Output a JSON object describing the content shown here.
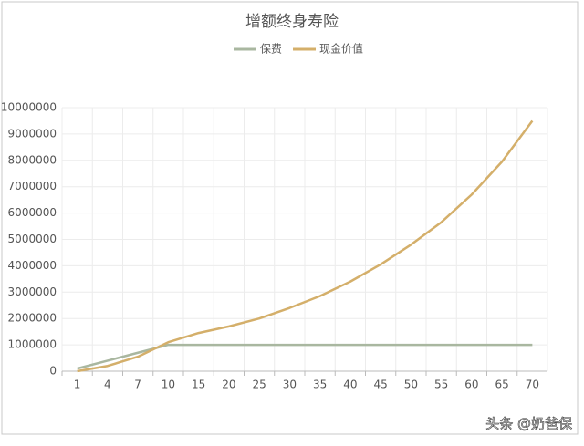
{
  "chart_data": {
    "type": "line",
    "title": "增额终身寿险",
    "categories": [
      "1",
      "4",
      "7",
      "10",
      "15",
      "20",
      "25",
      "30",
      "35",
      "40",
      "45",
      "50",
      "55",
      "60",
      "65",
      "70"
    ],
    "series": [
      {
        "name": "保费",
        "color": "#a9b7a0",
        "values": [
          100000,
          400000,
          700000,
          1000000,
          1000000,
          1000000,
          1000000,
          1000000,
          1000000,
          1000000,
          1000000,
          1000000,
          1000000,
          1000000,
          1000000,
          1000000
        ]
      },
      {
        "name": "现金价值",
        "color": "#d4af6a",
        "values": [
          0,
          200000,
          550000,
          1100000,
          1450000,
          1700000,
          2000000,
          2400000,
          2850000,
          3400000,
          4050000,
          4800000,
          5650000,
          6700000,
          7950000,
          9500000
        ]
      }
    ],
    "ylim": [
      0,
      10000000
    ],
    "yticks": [
      0,
      1000000,
      2000000,
      3000000,
      4000000,
      5000000,
      6000000,
      7000000,
      8000000,
      9000000,
      10000000
    ],
    "grid": true,
    "legend": "top"
  },
  "watermark": "头条 @奶爸保"
}
